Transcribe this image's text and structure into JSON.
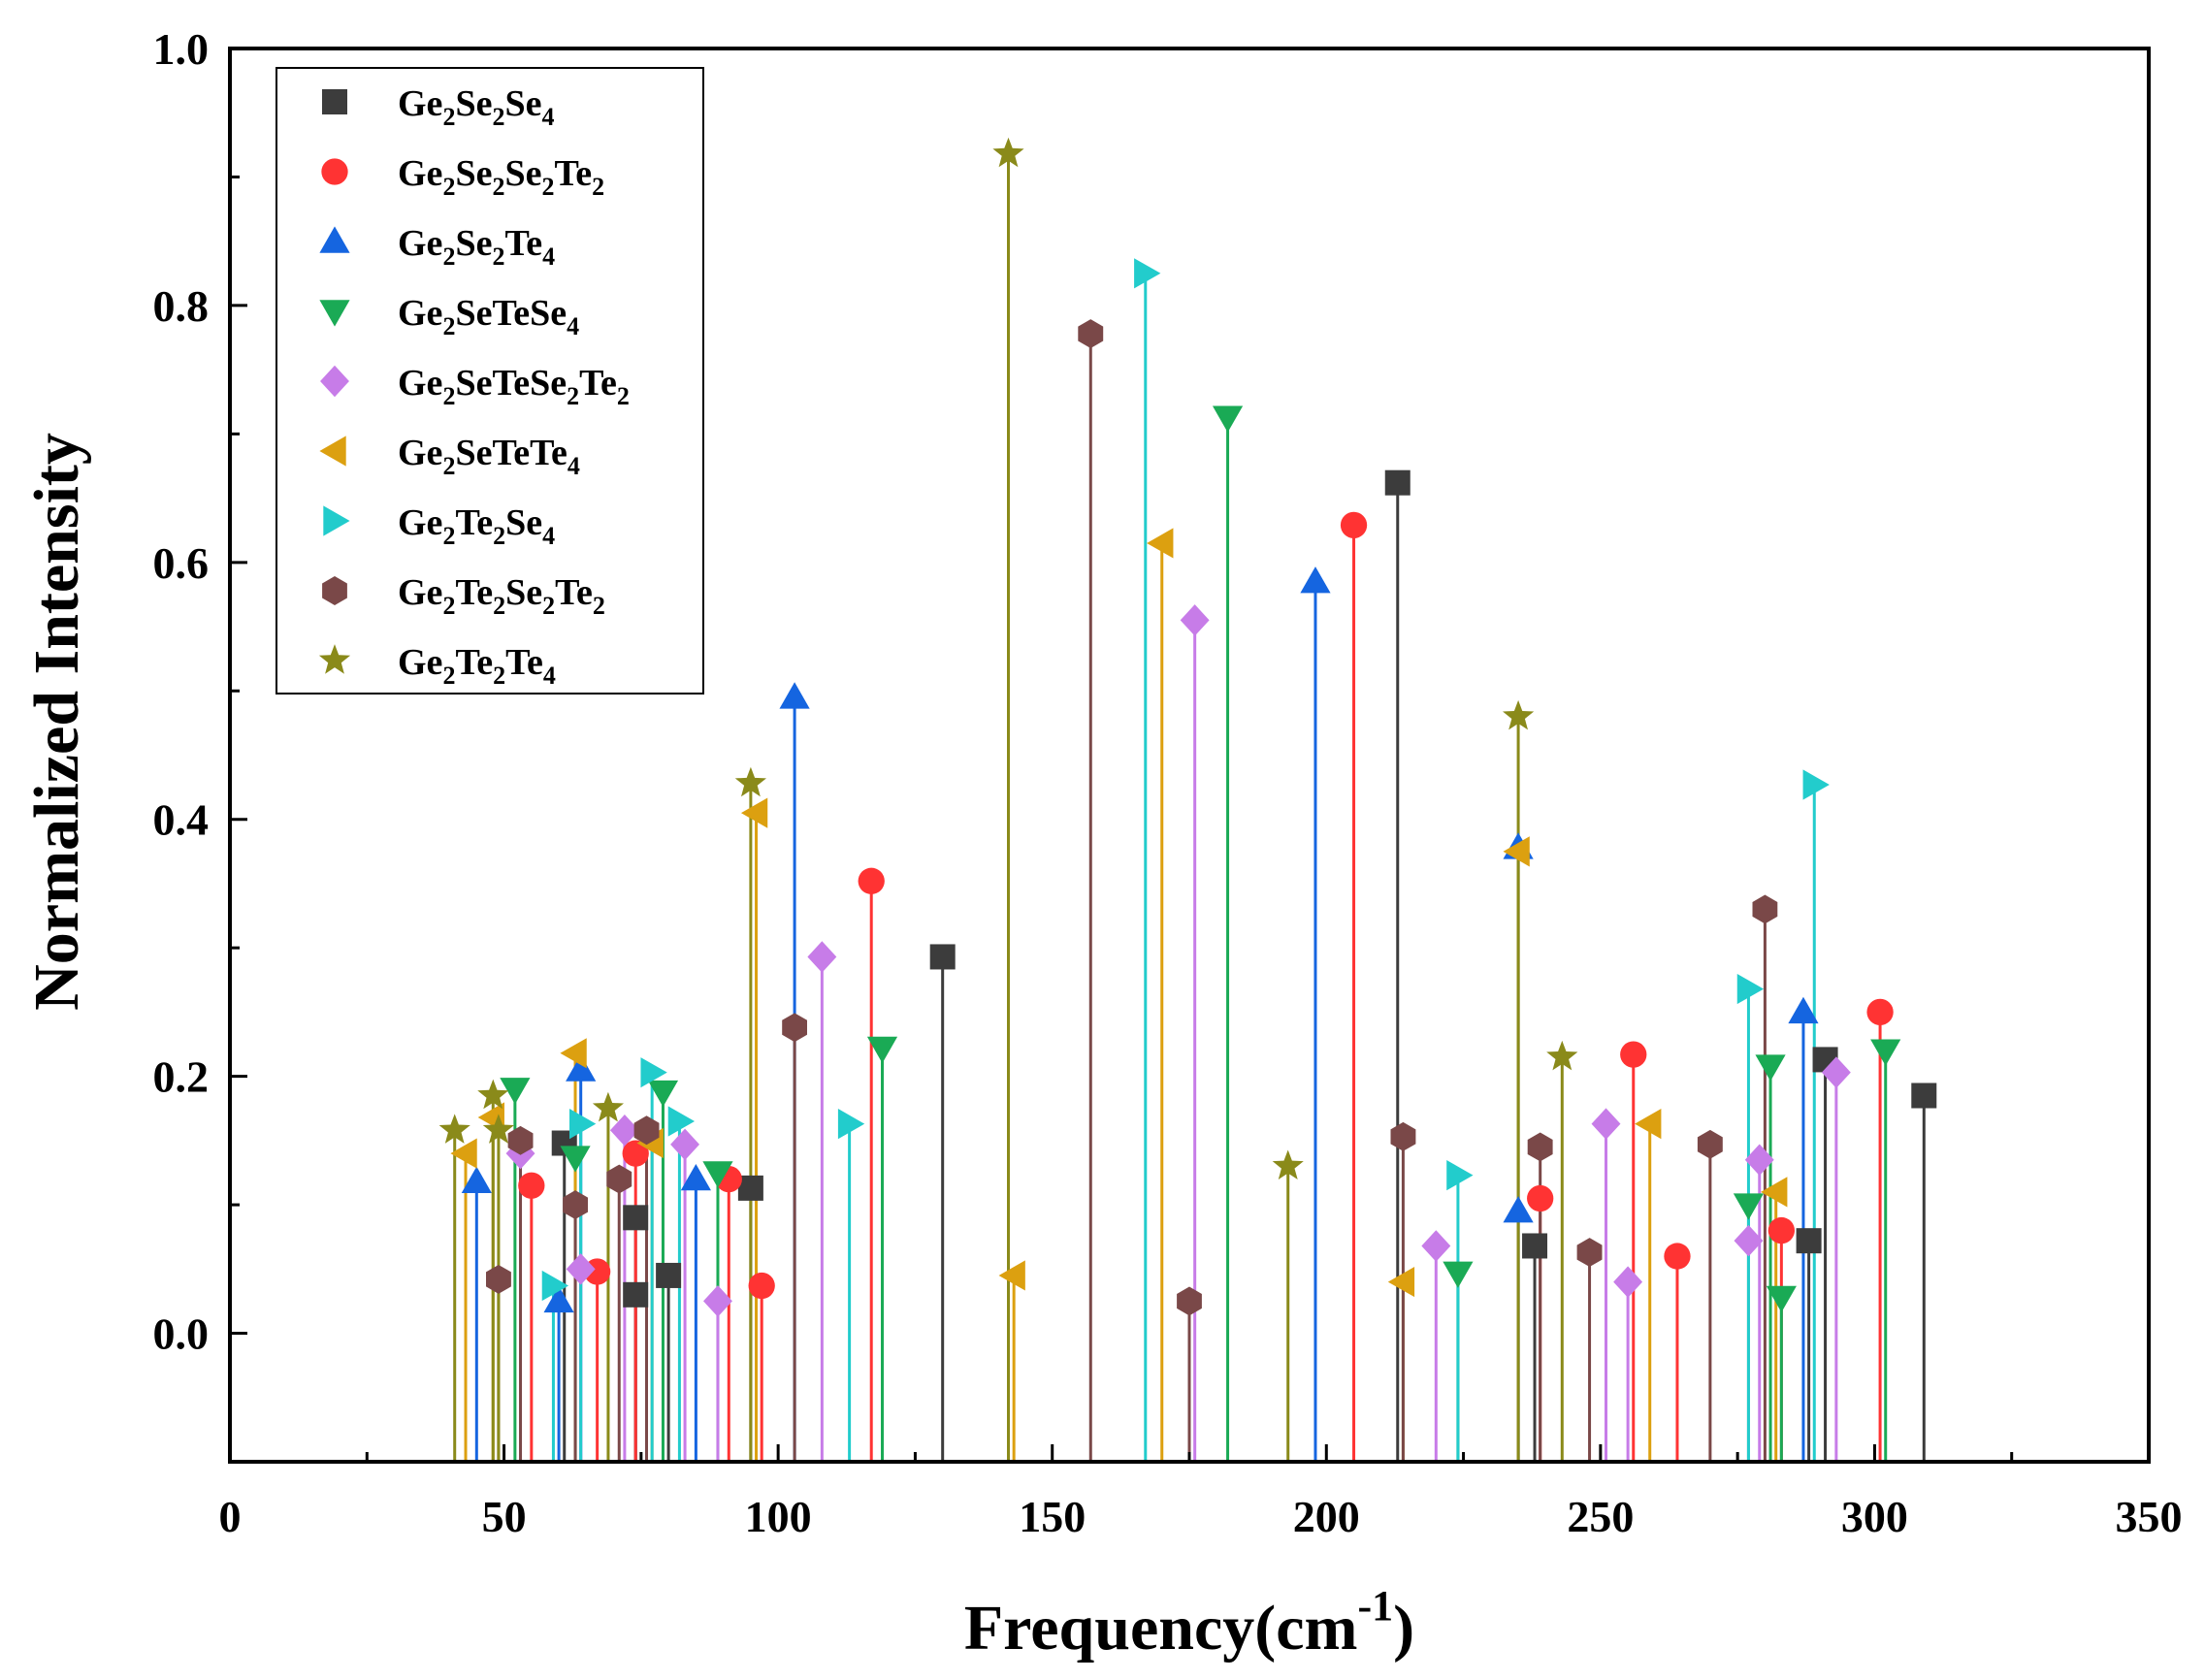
{
  "chart_data": {
    "type": "stem",
    "title": "",
    "xlabel": "Frequency(cm-1)",
    "ylabel": "Normalized Intensity",
    "xlim": [
      0,
      350
    ],
    "ylim": [
      -0.1,
      1.0
    ],
    "xticks": [
      0,
      50,
      100,
      150,
      200,
      250,
      300,
      350
    ],
    "xtick_labels": [
      "0",
      "50",
      "100",
      "150",
      "200",
      "250",
      "300",
      "350"
    ],
    "yticks": [
      0.0,
      0.2,
      0.4,
      0.6,
      0.8,
      1.0
    ],
    "ytick_labels": [
      "0.0",
      "0.2",
      "0.4",
      "0.6",
      "0.8",
      "1.0"
    ],
    "legend_position": "top-left",
    "series": [
      {
        "name": "Ge2Se2Se4",
        "formula": [
          [
            "Ge",
            ""
          ],
          [
            "2",
            "sub"
          ],
          [
            "Se",
            ""
          ],
          [
            "2",
            "sub"
          ],
          [
            "Se",
            ""
          ],
          [
            "4",
            "sub"
          ]
        ],
        "marker": "square",
        "color": "#3c3c3c",
        "points": [
          [
            61,
            0.148
          ],
          [
            74,
            0.09
          ],
          [
            74,
            0.03
          ],
          [
            80,
            0.045
          ],
          [
            95,
            0.113
          ],
          [
            130,
            0.293
          ],
          [
            213,
            0.662
          ],
          [
            238,
            0.068
          ],
          [
            288,
            0.072
          ],
          [
            291,
            0.213
          ],
          [
            309,
            0.185
          ]
        ]
      },
      {
        "name": "Ge2Se2Se2Te2",
        "formula": [
          [
            "Ge",
            ""
          ],
          [
            "2",
            "sub"
          ],
          [
            "Se",
            ""
          ],
          [
            "2",
            "sub"
          ],
          [
            "Se",
            ""
          ],
          [
            "2",
            "sub"
          ],
          [
            "Te",
            ""
          ],
          [
            "2",
            "sub"
          ]
        ],
        "marker": "circle",
        "color": "#ff3333",
        "points": [
          [
            55,
            0.115
          ],
          [
            67,
            0.048
          ],
          [
            74,
            0.14
          ],
          [
            91,
            0.12
          ],
          [
            97,
            0.037
          ],
          [
            117,
            0.352
          ],
          [
            205,
            0.629
          ],
          [
            239,
            0.105
          ],
          [
            256,
            0.217
          ],
          [
            264,
            0.06
          ],
          [
            283,
            0.08
          ],
          [
            301,
            0.25
          ]
        ]
      },
      {
        "name": "Ge2Se2Te4",
        "formula": [
          [
            "Ge",
            ""
          ],
          [
            "2",
            "sub"
          ],
          [
            "Se",
            ""
          ],
          [
            "2",
            "sub"
          ],
          [
            "Te",
            ""
          ],
          [
            "4",
            "sub"
          ]
        ],
        "marker": "triangle-up",
        "color": "#1565e0",
        "points": [
          [
            45,
            0.118
          ],
          [
            60,
            0.025
          ],
          [
            64,
            0.205
          ],
          [
            85,
            0.12
          ],
          [
            103,
            0.495
          ],
          [
            198,
            0.585
          ],
          [
            235,
            0.378
          ],
          [
            235,
            0.095
          ],
          [
            287,
            0.25
          ]
        ]
      },
      {
        "name": "Ge2SeTeSe4",
        "formula": [
          [
            "Ge",
            ""
          ],
          [
            "2",
            "sub"
          ],
          [
            "SeTeSe",
            ""
          ],
          [
            "4",
            "sub"
          ]
        ],
        "marker": "triangle-down",
        "color": "#1aaa55",
        "points": [
          [
            52,
            0.19
          ],
          [
            63,
            0.137
          ],
          [
            79,
            0.188
          ],
          [
            89,
            0.125
          ],
          [
            119,
            0.222
          ],
          [
            182,
            0.713
          ],
          [
            224,
            0.047
          ],
          [
            277,
            0.1
          ],
          [
            281,
            0.208
          ],
          [
            283,
            0.028
          ],
          [
            302,
            0.22
          ]
        ]
      },
      {
        "name": "Ge2SeTeSe2Te2",
        "formula": [
          [
            "Ge",
            ""
          ],
          [
            "2",
            "sub"
          ],
          [
            "SeTeSe",
            ""
          ],
          [
            "2",
            "sub"
          ],
          [
            "Te",
            ""
          ],
          [
            "2",
            "sub"
          ]
        ],
        "marker": "diamond",
        "color": "#c77ce8",
        "points": [
          [
            53,
            0.14
          ],
          [
            64,
            0.05
          ],
          [
            72,
            0.158
          ],
          [
            83,
            0.147
          ],
          [
            89,
            0.025
          ],
          [
            108,
            0.293
          ],
          [
            176,
            0.555
          ],
          [
            220,
            0.068
          ],
          [
            251,
            0.163
          ],
          [
            255,
            0.04
          ],
          [
            277,
            0.072
          ],
          [
            279,
            0.135
          ],
          [
            293,
            0.203
          ]
        ]
      },
      {
        "name": "Ge2SeTeTe4",
        "formula": [
          [
            "Ge",
            ""
          ],
          [
            "2",
            "sub"
          ],
          [
            "SeTeTe",
            ""
          ],
          [
            "4",
            "sub"
          ]
        ],
        "marker": "triangle-left",
        "color": "#dca010",
        "points": [
          [
            43,
            0.14
          ],
          [
            48,
            0.168
          ],
          [
            63,
            0.218
          ],
          [
            77,
            0.148
          ],
          [
            96,
            0.405
          ],
          [
            143,
            0.045
          ],
          [
            170,
            0.615
          ],
          [
            214,
            0.04
          ],
          [
            235,
            0.375
          ],
          [
            259,
            0.163
          ],
          [
            282,
            0.11
          ]
        ]
      },
      {
        "name": "Ge2Te2Se4",
        "formula": [
          [
            "Ge",
            ""
          ],
          [
            "2",
            "sub"
          ],
          [
            "Te",
            ""
          ],
          [
            "2",
            "sub"
          ],
          [
            "Se",
            ""
          ],
          [
            "4",
            "sub"
          ]
        ],
        "marker": "triangle-right",
        "color": "#22cccc",
        "points": [
          [
            59,
            0.037
          ],
          [
            64,
            0.163
          ],
          [
            77,
            0.203
          ],
          [
            82,
            0.165
          ],
          [
            113,
            0.163
          ],
          [
            167,
            0.825
          ],
          [
            224,
            0.123
          ],
          [
            277,
            0.268
          ],
          [
            289,
            0.427
          ]
        ]
      },
      {
        "name": "Ge2Te2Se2Te2",
        "formula": [
          [
            "Ge",
            ""
          ],
          [
            "2",
            "sub"
          ],
          [
            "Te",
            ""
          ],
          [
            "2",
            "sub"
          ],
          [
            "Se",
            ""
          ],
          [
            "2",
            "sub"
          ],
          [
            "Te",
            ""
          ],
          [
            "2",
            "sub"
          ]
        ],
        "marker": "hexagon",
        "color": "#7a4848",
        "points": [
          [
            49,
            0.042
          ],
          [
            53,
            0.15
          ],
          [
            63,
            0.1
          ],
          [
            71,
            0.12
          ],
          [
            76,
            0.158
          ],
          [
            103,
            0.238
          ],
          [
            157,
            0.778
          ],
          [
            175,
            0.025
          ],
          [
            214,
            0.153
          ],
          [
            239,
            0.145
          ],
          [
            248,
            0.063
          ],
          [
            270,
            0.147
          ],
          [
            280,
            0.33
          ]
        ]
      },
      {
        "name": "Ge2Te2Te4",
        "formula": [
          [
            "Ge",
            ""
          ],
          [
            "2",
            "sub"
          ],
          [
            "Te",
            ""
          ],
          [
            "2",
            "sub"
          ],
          [
            "Te",
            ""
          ],
          [
            "4",
            "sub"
          ]
        ],
        "marker": "star",
        "color": "#8a8a1a",
        "points": [
          [
            41,
            0.158
          ],
          [
            48,
            0.185
          ],
          [
            49,
            0.158
          ],
          [
            69,
            0.175
          ],
          [
            95,
            0.428
          ],
          [
            142,
            0.918
          ],
          [
            193,
            0.13
          ],
          [
            235,
            0.48
          ],
          [
            243,
            0.215
          ]
        ]
      }
    ]
  }
}
